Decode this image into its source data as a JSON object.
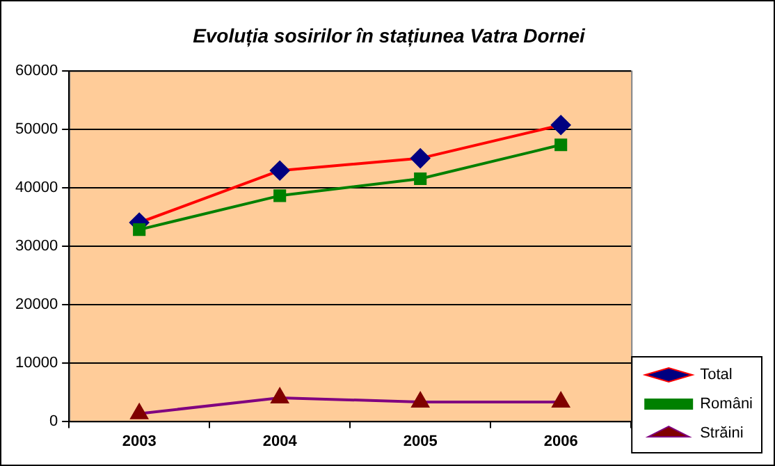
{
  "chart_data": {
    "type": "line",
    "title": "Evoluția sosirilor în stațiunea Vatra Dornei",
    "categories": [
      "2003",
      "2004",
      "2005",
      "2006"
    ],
    "series": [
      {
        "name": "Total",
        "color": "#ff0000",
        "colors": [
          "#000080",
          "#000080",
          "#000080",
          "#000080"
        ],
        "marker": "diamond",
        "values": [
          34000,
          42900,
          45000,
          50700
        ]
      },
      {
        "name": "Români",
        "color": "#008000",
        "colors": [
          "#008000",
          "#008000",
          "#008000",
          "#008000"
        ],
        "marker": "square",
        "values": [
          32800,
          38600,
          41500,
          47300
        ]
      },
      {
        "name": "Străini",
        "color": "#800080",
        "colors": [
          "#800000",
          "#800000",
          "#800000",
          "#800000"
        ],
        "marker": "triangle",
        "values": [
          1300,
          4000,
          3300,
          3300
        ]
      }
    ],
    "ylim": [
      0,
      60000
    ],
    "yticks": [
      0,
      10000,
      20000,
      30000,
      40000,
      50000,
      60000
    ],
    "grid": "y",
    "legend": "right"
  }
}
